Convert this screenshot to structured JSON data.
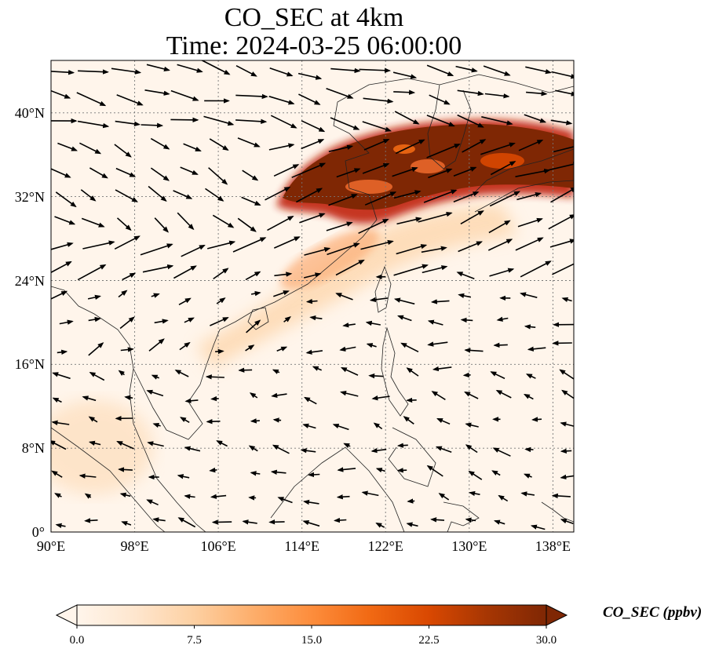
{
  "title": "CO_SEC at 4km",
  "subtitle": "Time: 2024-03-25 06:00:00",
  "lon_ticks": [
    "90°E",
    "98°E",
    "106°E",
    "114°E",
    "122°E",
    "130°E",
    "138°E"
  ],
  "lat_ticks": [
    "0°",
    "8°N",
    "16°N",
    "24°N",
    "32°N",
    "40°N"
  ],
  "colorbar": {
    "label": "CO_SEC (ppbv)",
    "ticks": [
      "0.0",
      "7.5",
      "15.0",
      "22.5",
      "30.0"
    ],
    "colors": [
      "#fff5eb",
      "#fee6ce",
      "#fdd0a2",
      "#fdae6b",
      "#fd8d3c",
      "#f16913",
      "#d94801",
      "#a63603",
      "#7f2704"
    ],
    "extend": "both"
  },
  "chart_data": {
    "type": "map",
    "title": "CO_SEC at 4km",
    "subtitle": "Time: 2024-03-25 06:00:00",
    "xlim": [
      90,
      140
    ],
    "ylim": [
      0,
      45
    ],
    "lon_ticks": [
      90,
      98,
      106,
      114,
      122,
      130,
      138
    ],
    "lat_ticks": [
      0,
      8,
      16,
      24,
      32,
      40
    ],
    "grid": true,
    "colorbar_range": [
      0,
      30
    ],
    "colormap": "Oranges",
    "plume_regions": [
      {
        "level": "high",
        "lon_range": [
          111,
          140
        ],
        "lat_range": [
          30,
          39
        ],
        "value_ppbv": 30
      },
      {
        "level": "moderate",
        "lon_range": [
          111,
          124
        ],
        "lat_range": [
          24,
          31
        ],
        "value_ppbv": 10
      },
      {
        "level": "low",
        "lon_range": [
          90,
          99
        ],
        "lat_range": [
          3,
          12
        ],
        "value_ppbv": 5
      }
    ]
  }
}
